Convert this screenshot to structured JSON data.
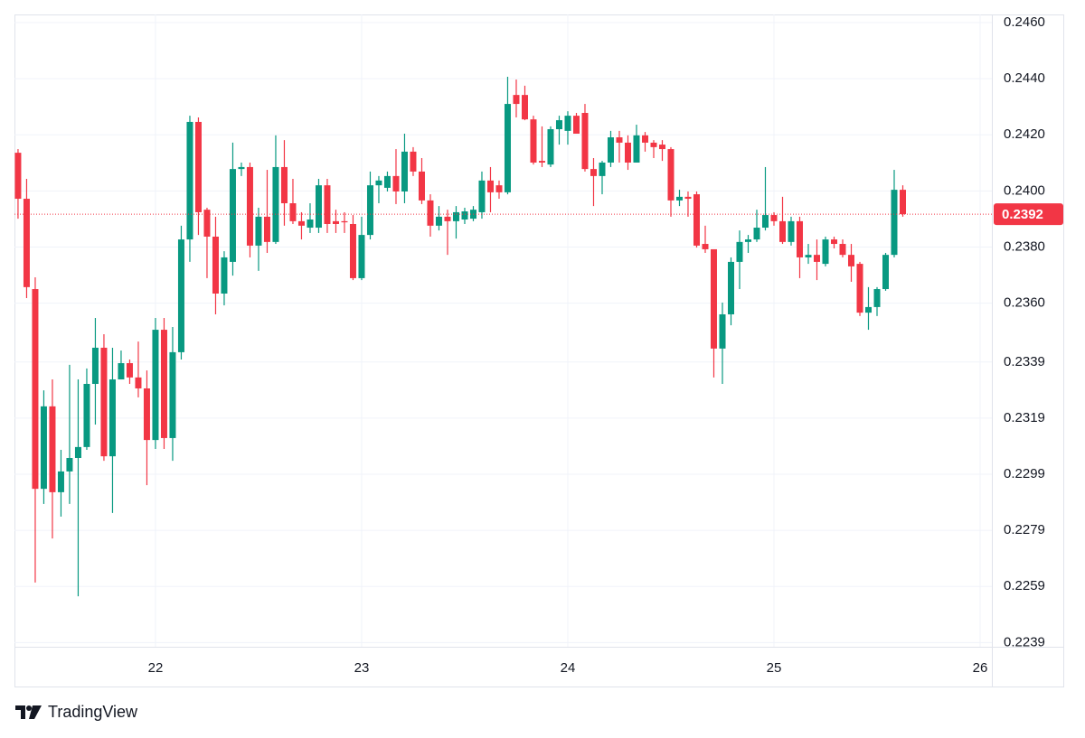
{
  "chart_data": {
    "type": "candlestick",
    "brand": "TradingView",
    "last_label": "0.2392",
    "up_color": "#089981",
    "down_color": "#f23645",
    "grid": true,
    "xlim": [
      21.316,
      26.057
    ],
    "xticks": [
      22,
      23,
      24,
      25,
      26
    ],
    "ylim": [
      0.22375,
      0.24629
    ],
    "yticks": [
      {
        "value": 0.246,
        "label": "0.2460"
      },
      {
        "value": 0.244,
        "label": "0.2440"
      },
      {
        "value": 0.242,
        "label": "0.2420"
      },
      {
        "value": 0.24,
        "label": "0.2400"
      },
      {
        "value": 0.238,
        "label": "0.2380"
      },
      {
        "value": 0.236,
        "label": "0.2360"
      },
      {
        "value": 0.2339,
        "label": "0.2339"
      },
      {
        "value": 0.2319,
        "label": "0.2319"
      },
      {
        "value": 0.2299,
        "label": "0.2299"
      },
      {
        "value": 0.2279,
        "label": "0.2279"
      },
      {
        "value": 0.2259,
        "label": "0.2259"
      },
      {
        "value": 0.2239,
        "label": "0.2239"
      }
    ],
    "x": [
      21.3333,
      21.375,
      21.4167,
      21.4583,
      21.5,
      21.5417,
      21.5833,
      21.625,
      21.6667,
      21.7083,
      21.75,
      21.7917,
      21.8333,
      21.875,
      21.9167,
      21.9583,
      22,
      22.0417,
      22.0833,
      22.125,
      22.1667,
      22.2083,
      22.25,
      22.2917,
      22.3333,
      22.375,
      22.4167,
      22.4583,
      22.5,
      22.5417,
      22.5833,
      22.625,
      22.6667,
      22.7083,
      22.75,
      22.7917,
      22.8333,
      22.875,
      22.9167,
      22.9583,
      23,
      23.0417,
      23.0833,
      23.125,
      23.1667,
      23.2083,
      23.25,
      23.2917,
      23.3333,
      23.375,
      23.4167,
      23.4583,
      23.5,
      23.5417,
      23.5833,
      23.625,
      23.6667,
      23.7083,
      23.75,
      23.7917,
      23.8333,
      23.875,
      23.9167,
      23.9583,
      24,
      24.0417,
      24.0833,
      24.125,
      24.1667,
      24.2083,
      24.25,
      24.2917,
      24.3333,
      24.375,
      24.4167,
      24.4583,
      24.5,
      24.5417,
      24.5833,
      24.625,
      24.6667,
      24.7083,
      24.75,
      24.7917,
      24.8333,
      24.875,
      24.9167,
      24.9583,
      25,
      25.0417,
      25.0833,
      25.125,
      25.1667,
      25.2083,
      25.25,
      25.2917,
      25.3333,
      25.375,
      25.4167,
      25.4583,
      25.5,
      25.5417,
      25.5833,
      25.625
    ],
    "open": [
      0.24136,
      0.23972,
      0.2365,
      0.22938,
      0.23232,
      0.22926,
      0.23,
      0.23048,
      0.23087,
      0.23312,
      0.23441,
      0.23054,
      0.23328,
      0.23386,
      0.23335,
      0.23296,
      0.23112,
      0.23505,
      0.23119,
      0.23425,
      0.23827,
      0.24246,
      0.23933,
      0.23837,
      0.23634,
      0.23747,
      0.24078,
      0.24085,
      0.23805,
      0.23908,
      0.23818,
      0.24085,
      0.23956,
      0.23892,
      0.23869,
      0.23869,
      0.2402,
      0.23892,
      0.23892,
      0.23882,
      0.23689,
      0.23843,
      0.2402,
      0.24011,
      0.24053,
      0.23998,
      0.2414,
      0.24069,
      0.23966,
      0.23876,
      0.23908,
      0.23892,
      0.23898,
      0.23901,
      0.23924,
      0.24037,
      0.2402,
      0.23995,
      0.24342,
      0.24342,
      0.24255,
      0.24107,
      0.24094,
      0.2422,
      0.24214,
      0.24268,
      0.24278,
      0.24078,
      0.24053,
      0.24101,
      0.24191,
      0.24172,
      0.24101,
      0.24198,
      0.24172,
      0.24165,
      0.24149,
      0.23966,
      0.23979,
      0.23988,
      0.23811,
      0.23792,
      0.23438,
      0.2356,
      0.23747,
      0.23818,
      0.23827,
      0.23869,
      0.23914,
      0.23892,
      0.23818,
      0.23892,
      0.23763,
      0.23772,
      0.2374,
      0.23827,
      0.23811,
      0.23772,
      0.2374,
      0.23566,
      0.23586,
      0.2365,
      0.23772,
      0.24004
    ],
    "high": [
      0.24149,
      0.24043,
      0.23692,
      0.23289,
      0.23328,
      0.23077,
      0.2338,
      0.23328,
      0.23367,
      0.23547,
      0.23489,
      0.23441,
      0.23431,
      0.23399,
      0.23463,
      0.2336,
      0.23547,
      0.23547,
      0.23515,
      0.23876,
      0.24268,
      0.24262,
      0.2394,
      0.23908,
      0.23785,
      0.24172,
      0.24101,
      0.24101,
      0.2394,
      0.24075,
      0.24198,
      0.24181,
      0.24043,
      0.23924,
      0.23956,
      0.24043,
      0.24043,
      0.23933,
      0.23924,
      0.23914,
      0.23908,
      0.24069,
      0.24053,
      0.24069,
      0.24149,
      0.24204,
      0.24156,
      0.24117,
      0.23988,
      0.23946,
      0.23933,
      0.23946,
      0.2394,
      0.23946,
      0.24069,
      0.24085,
      0.24037,
      0.24407,
      0.24397,
      0.24375,
      0.24268,
      0.2423,
      0.2423,
      0.24268,
      0.24284,
      0.24278,
      0.2431,
      0.24117,
      0.24107,
      0.24214,
      0.24214,
      0.24198,
      0.24236,
      0.2421,
      0.24181,
      0.24181,
      0.24156,
      0.24004,
      0.23998,
      0.23998,
      0.23876,
      0.23792,
      0.23602,
      0.23763,
      0.23859,
      0.23843,
      0.23933,
      0.24085,
      0.23924,
      0.23979,
      0.23908,
      0.23908,
      0.23811,
      0.23827,
      0.23837,
      0.23837,
      0.23827,
      0.23811,
      0.23747,
      0.23657,
      0.23657,
      0.23779,
      0.24075,
      0.2402
    ],
    "low": [
      0.23901,
      0.23618,
      0.22604,
      0.22884,
      0.22761,
      0.22839,
      0.22884,
      0.22555,
      0.23077,
      0.23167,
      0.23038,
      0.22852,
      0.23328,
      0.23312,
      0.23264,
      0.22951,
      0.2308,
      0.2308,
      0.23038,
      0.23399,
      0.23747,
      0.23843,
      0.23689,
      0.2356,
      0.23592,
      0.23698,
      0.24053,
      0.23763,
      0.23715,
      0.23779,
      0.23811,
      0.23876,
      0.23882,
      0.23827,
      0.2385,
      0.2385,
      0.2385,
      0.2385,
      0.2385,
      0.23682,
      0.23682,
      0.23827,
      0.23956,
      0.23998,
      0.23953,
      0.23956,
      0.24053,
      0.23953,
      0.23837,
      0.23859,
      0.23772,
      0.2383,
      0.23882,
      0.23892,
      0.23901,
      0.23924,
      0.23972,
      0.23988,
      0.24262,
      0.24252,
      0.24094,
      0.24085,
      0.24085,
      0.24165,
      0.24165,
      0.24204,
      0.24069,
      0.23946,
      0.23988,
      0.24085,
      0.24101,
      0.24075,
      0.24101,
      0.2414,
      0.24117,
      0.24107,
      0.23908,
      0.23946,
      0.23908,
      0.23798,
      0.23779,
      0.23335,
      0.23312,
      0.23521,
      0.2365,
      0.23779,
      0.23818,
      0.23859,
      0.23876,
      0.23811,
      0.23805,
      0.23689,
      0.2374,
      0.23682,
      0.23731,
      0.23795,
      0.23763,
      0.23676,
      0.23554,
      0.23505,
      0.23554,
      0.23644,
      0.23763,
      0.23908
    ],
    "close": [
      0.23972,
      0.23657,
      0.22938,
      0.23232,
      0.22926,
      0.23,
      0.23048,
      0.23087,
      0.23312,
      0.23441,
      0.23054,
      0.23328,
      0.23386,
      0.23335,
      0.23296,
      0.23112,
      0.23505,
      0.23119,
      0.23425,
      0.23827,
      0.24246,
      0.23924,
      0.23837,
      0.23634,
      0.23763,
      0.24078,
      0.24085,
      0.23805,
      0.23908,
      0.23818,
      0.24085,
      0.23956,
      0.23892,
      0.23876,
      0.23898,
      0.2402,
      0.23882,
      0.23882,
      0.23888,
      0.23689,
      0.23843,
      0.2402,
      0.24037,
      0.24053,
      0.23998,
      0.2414,
      0.24069,
      0.23966,
      0.23876,
      0.23908,
      0.23892,
      0.23924,
      0.23927,
      0.23933,
      0.24037,
      0.23995,
      0.23995,
      0.2431,
      0.2431,
      0.24255,
      0.24101,
      0.24101,
      0.2422,
      0.24252,
      0.24268,
      0.24204,
      0.24078,
      0.24053,
      0.24101,
      0.24191,
      0.24172,
      0.24101,
      0.24198,
      0.24172,
      0.24156,
      0.24149,
      0.23966,
      0.23979,
      0.23972,
      0.23805,
      0.23792,
      0.23438,
      0.2356,
      0.23747,
      0.23818,
      0.23827,
      0.23869,
      0.23914,
      0.23892,
      0.23818,
      0.23892,
      0.23763,
      0.23772,
      0.23747,
      0.23827,
      0.23811,
      0.23772,
      0.23731,
      0.23566,
      0.23586,
      0.2365,
      0.23772,
      0.24004,
      0.23917
    ]
  }
}
